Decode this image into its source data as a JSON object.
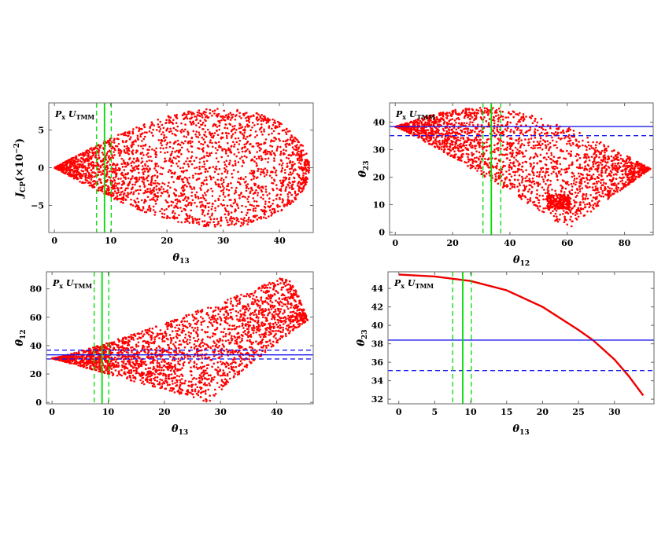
{
  "colors": {
    "points": "#ff0000",
    "curve": "#ee0000",
    "green": "#00dd00",
    "blue": "#1a1aee",
    "frame": "#666666"
  },
  "chart_data": [
    {
      "id": "p1",
      "type": "scatter",
      "legend_text": {
        "main": "P",
        "sub": "x",
        "main2": " U",
        "sub2": "TMM"
      },
      "xlabel": {
        "sym": "θ",
        "sub": "13"
      },
      "ylabel": {
        "sym": "J",
        "sub": "CP",
        "suffix": "(×10",
        "sup": "−2",
        "close": ")"
      },
      "xlim": [
        -1,
        46
      ],
      "ylim": [
        -8.6,
        8.6
      ],
      "xticks": [
        0,
        10,
        20,
        30,
        40
      ],
      "xtick_labels": [
        "0",
        "10",
        "20",
        "30",
        "40"
      ],
      "yticks": [
        -5,
        0,
        5
      ],
      "ytick_labels": [
        "−5",
        "0",
        "5"
      ],
      "region": {
        "shape": "teardrop",
        "tip": [
          0,
          0
        ],
        "max_abs_y": 7.9,
        "peak_x": 30,
        "x_end": 45.3
      },
      "vlines": [
        {
          "x": 8.9,
          "style": "solid",
          "color": "green"
        },
        {
          "x": 7.5,
          "style": "dashed",
          "color": "green"
        },
        {
          "x": 10.1,
          "style": "dashed",
          "color": "green"
        }
      ],
      "hlines": []
    },
    {
      "id": "p2",
      "type": "scatter",
      "legend_text": {
        "main": "P",
        "sub": "x",
        "main2": " U",
        "sub2": "TMM"
      },
      "xlabel": {
        "sym": "θ",
        "sub": "12"
      },
      "ylabel": {
        "sym": "θ",
        "sub": "23"
      },
      "xlim": [
        -2,
        90
      ],
      "ylim": [
        -1,
        47
      ],
      "xticks": [
        0,
        20,
        40,
        60,
        80
      ],
      "xtick_labels": [
        "0",
        "20",
        "40",
        "60",
        "80"
      ],
      "yticks": [
        0,
        10,
        20,
        30,
        40
      ],
      "ytick_labels": [
        "0",
        "10",
        "20",
        "30",
        "40"
      ],
      "region": {
        "shape": "dome",
        "upper_peak": [
          31,
          45.5
        ],
        "upper_start": [
          0,
          38.3
        ],
        "upper_end": [
          89,
          23
        ],
        "lower_start": [
          0,
          38.3
        ],
        "lower_end": [
          60,
          1
        ]
      },
      "vlines": [
        {
          "x": 33.5,
          "style": "solid",
          "color": "green"
        },
        {
          "x": 30.6,
          "style": "dashed",
          "color": "green"
        },
        {
          "x": 36.8,
          "style": "dashed",
          "color": "green"
        }
      ],
      "hlines": [
        {
          "y": 38.4,
          "style": "solid",
          "color": "blue"
        },
        {
          "y": 35.1,
          "style": "dashed",
          "color": "blue"
        }
      ]
    },
    {
      "id": "p3",
      "type": "scatter",
      "legend_text": {
        "main": "P",
        "sub": "x",
        "main2": " U",
        "sub2": "TMM"
      },
      "xlabel": {
        "sym": "θ",
        "sub": "13"
      },
      "ylabel": {
        "sym": "θ",
        "sub": "12"
      },
      "xlim": [
        -1,
        46.5
      ],
      "ylim": [
        -1,
        92
      ],
      "xticks": [
        0,
        10,
        20,
        30,
        40
      ],
      "xtick_labels": [
        "0",
        "10",
        "20",
        "30",
        "40"
      ],
      "yticks": [
        0,
        20,
        40,
        60,
        80
      ],
      "ytick_labels": [
        "0",
        "20",
        "40",
        "60",
        "80"
      ],
      "region": {
        "shape": "wedge",
        "tip": [
          0,
          31
        ],
        "upper_end": [
          41,
          88
        ],
        "lower_end": [
          28,
          0
        ],
        "x_end": 45.5
      },
      "vlines": [
        {
          "x": 8.9,
          "style": "solid",
          "color": "green"
        },
        {
          "x": 7.5,
          "style": "dashed",
          "color": "green"
        },
        {
          "x": 10.1,
          "style": "dashed",
          "color": "green"
        }
      ],
      "hlines": [
        {
          "y": 33.5,
          "style": "solid",
          "color": "blue"
        },
        {
          "y": 30.6,
          "style": "dashed",
          "color": "blue"
        },
        {
          "y": 36.8,
          "style": "dashed",
          "color": "blue"
        }
      ]
    },
    {
      "id": "p4",
      "type": "line",
      "legend_text": {
        "main": "P",
        "sub": "x",
        "main2": " U",
        "sub2": "TMM"
      },
      "xlabel": {
        "sym": "θ",
        "sub": "13"
      },
      "ylabel": {
        "sym": "θ",
        "sub": "23"
      },
      "xlim": [
        -1.5,
        35.5
      ],
      "ylim": [
        31.5,
        45.8
      ],
      "xticks": [
        0,
        5,
        10,
        15,
        20,
        25,
        30
      ],
      "xtick_labels": [
        "0",
        "5",
        "10",
        "15",
        "20",
        "25",
        "30"
      ],
      "yticks": [
        32,
        34,
        36,
        38,
        40,
        42,
        44
      ],
      "ytick_labels": [
        "32",
        "34",
        "36",
        "38",
        "40",
        "42",
        "44"
      ],
      "series": [
        {
          "x": [
            0,
            5,
            10,
            15,
            20,
            25,
            27,
            30,
            32,
            34
          ],
          "y": [
            45.5,
            45.3,
            44.8,
            43.8,
            42.0,
            39.5,
            38.4,
            36.3,
            34.5,
            32.4
          ]
        }
      ],
      "vlines": [
        {
          "x": 8.9,
          "style": "solid",
          "color": "green"
        },
        {
          "x": 7.5,
          "style": "dashed",
          "color": "green"
        },
        {
          "x": 10.1,
          "style": "dashed",
          "color": "green"
        }
      ],
      "hlines": [
        {
          "y": 38.4,
          "style": "solid",
          "color": "blue"
        },
        {
          "y": 35.1,
          "style": "dashed",
          "color": "blue"
        }
      ]
    }
  ]
}
